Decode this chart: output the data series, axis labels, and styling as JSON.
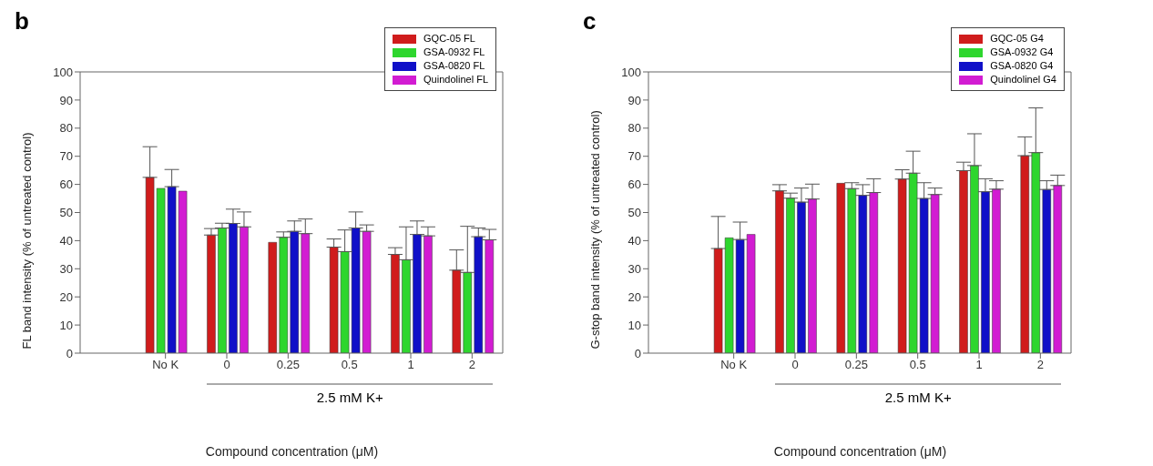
{
  "chart_data": [
    {
      "type": "bar",
      "title": "b",
      "xlabel": "Compound concentration (μM)",
      "ylabel": "FL band intensity (% of untreated control)",
      "categories": [
        "No K",
        "0",
        "0.25",
        "0.5",
        "1",
        "2"
      ],
      "annotations": [
        "2.5 mM K+"
      ],
      "ylim": [
        0,
        100
      ],
      "yticks": [
        0,
        10,
        20,
        30,
        40,
        50,
        60,
        70,
        80,
        90,
        100
      ],
      "legend": "top right",
      "series": [
        {
          "name": "GQC-05 FL",
          "color": "#d01c1c",
          "values": [
            62.5,
            42,
            39.4,
            37.7,
            35.1,
            29.5
          ],
          "errors": [
            [
              62.5,
              73.4
            ],
            [
              42,
              44.3
            ],
            null,
            [
              37.7,
              40.6
            ],
            [
              35.1,
              37.5
            ],
            [
              29.5,
              36.7
            ]
          ]
        },
        {
          "name": "GSA-0932 FL",
          "color": "#2ed62e",
          "values": [
            58.6,
            44.5,
            41.2,
            36.1,
            33.2,
            28.7
          ],
          "errors": [
            null,
            [
              44.5,
              46.2
            ],
            [
              41.2,
              43.1
            ],
            [
              36.1,
              43.8
            ],
            [
              33.2,
              44.9
            ],
            [
              28.7,
              45.1
            ]
          ]
        },
        {
          "name": "GSA-0820 FL",
          "color": "#1010c8",
          "values": [
            59.2,
            46.1,
            43.3,
            44.5,
            42.2,
            41.4
          ],
          "errors": [
            [
              59.2,
              65.3
            ],
            [
              46.1,
              51.2
            ],
            [
              43.3,
              47
            ],
            [
              44.5,
              50.2
            ],
            [
              42.2,
              47
            ],
            [
              41.4,
              44.5
            ]
          ]
        },
        {
          "name": "Quindolinel FL",
          "color": "#d21cd2",
          "values": [
            57.6,
            44.9,
            42.5,
            43.3,
            41.7,
            40.3
          ],
          "errors": [
            null,
            [
              44.9,
              50.2
            ],
            [
              42.5,
              47.7
            ],
            [
              43.3,
              45.6
            ],
            [
              41.7,
              44.9
            ],
            [
              40.3,
              44
            ]
          ]
        }
      ]
    },
    {
      "type": "bar",
      "title": "c",
      "xlabel": "Compound concentration (μM)",
      "ylabel": "G-stop band intensity (% of untreated control)",
      "categories": [
        "No K",
        "0",
        "0.25",
        "0.5",
        "1",
        "2"
      ],
      "annotations": [
        "2.5 mM K+"
      ],
      "ylim": [
        0,
        100
      ],
      "yticks": [
        0,
        10,
        20,
        30,
        40,
        50,
        60,
        70,
        80,
        90,
        100
      ],
      "legend": "top right",
      "series": [
        {
          "name": "GQC-05 G4",
          "color": "#d01c1c",
          "values": [
            37.2,
            57.7,
            60.4,
            61.9,
            64.9,
            70.2
          ],
          "errors": [
            [
              37.2,
              48.6
            ],
            [
              57.7,
              59.9
            ],
            null,
            [
              61.9,
              65.2
            ],
            [
              64.9,
              67.9
            ],
            [
              70.2,
              76.9
            ]
          ]
        },
        {
          "name": "GSA-0932 G4",
          "color": "#2ed62e",
          "values": [
            41,
            55.1,
            58.5,
            64,
            66.7,
            71.3
          ],
          "errors": [
            null,
            [
              55.1,
              56.9
            ],
            [
              58.5,
              60.6
            ],
            [
              64,
              71.8
            ],
            [
              66.7,
              78
            ],
            [
              71.3,
              87.2
            ]
          ]
        },
        {
          "name": "GSA-0820 G4",
          "color": "#1010c8",
          "values": [
            40.4,
            53.7,
            56.1,
            55,
            57.4,
            58.2
          ],
          "errors": [
            [
              40.4,
              46.6
            ],
            [
              53.7,
              58.7
            ],
            [
              56.1,
              59.9
            ],
            [
              55,
              60.6
            ],
            [
              57.4,
              62
            ],
            [
              58.2,
              61.3
            ]
          ]
        },
        {
          "name": "Quindolinel G4",
          "color": "#d21cd2",
          "values": [
            42.2,
            54.8,
            57.1,
            56.4,
            58.3,
            59.6
          ],
          "errors": [
            null,
            [
              54.8,
              60.1
            ],
            [
              57.1,
              62
            ],
            [
              56.4,
              58.7
            ],
            [
              58.3,
              61.3
            ],
            [
              59.6,
              63.3
            ]
          ]
        }
      ]
    }
  ]
}
